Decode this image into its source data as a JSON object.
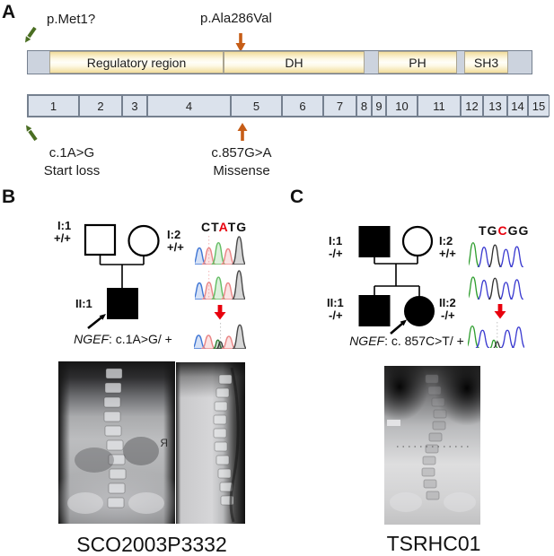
{
  "colors": {
    "green_arrow": "#4a6e22",
    "orange_arrow": "#c65d17",
    "red_arrow": "#e8000d",
    "domain_fill": "#fdf8e3",
    "linker_gray": "#ccd3de",
    "exon_fill": "#dbe2ec"
  },
  "panelA": {
    "label": "A",
    "annotation_start": "p.Met1?",
    "annotation_missense": "p.Ala286Val",
    "domains": [
      {
        "label": "Regulatory  region"
      },
      {
        "label": "DH"
      },
      {
        "label": "PH"
      },
      {
        "label": "SH3"
      }
    ],
    "exons": [
      "1",
      "2",
      "3",
      "4",
      "5",
      "6",
      "7",
      "8",
      "9",
      "10",
      "11",
      "12",
      "13",
      "14",
      "15"
    ],
    "mutation_left": {
      "code": "c.1A>G",
      "effect": "Start loss"
    },
    "mutation_right": {
      "code": "c.857G>A",
      "effect": "Missense"
    }
  },
  "panelB": {
    "label": "B",
    "pedigree": {
      "i1": {
        "id": "I:1",
        "genotype": "+/+"
      },
      "i2": {
        "id": "I:2",
        "genotype": "+/+"
      },
      "ii1": {
        "id": "II:1"
      }
    },
    "gene_annotation": {
      "gene": "NGEF",
      "rest": ": c.1A>G/ +"
    },
    "chromatogram": {
      "seq_pre": "CT",
      "seq_mut": "A",
      "seq_post": "TG",
      "style": "filled",
      "rows": [
        [
          {
            "x": 0.09,
            "h": 0.58,
            "c": "#4076d4"
          },
          {
            "x": 0.28,
            "h": 0.58,
            "c": "#e98585",
            "d": true
          },
          {
            "x": 0.47,
            "h": 0.76,
            "c": "#64bd64"
          },
          {
            "x": 0.66,
            "h": 0.55,
            "c": "#e98585"
          },
          {
            "x": 0.88,
            "h": 0.97,
            "c": "#4a4a4a"
          }
        ],
        [
          {
            "x": 0.09,
            "h": 0.58,
            "c": "#4076d4"
          },
          {
            "x": 0.28,
            "h": 0.6,
            "c": "#e98585",
            "d": true
          },
          {
            "x": 0.47,
            "h": 0.78,
            "c": "#64bd64"
          },
          {
            "x": 0.66,
            "h": 0.58,
            "c": "#e98585"
          },
          {
            "x": 0.88,
            "h": 1.0,
            "c": "#4a4a4a"
          }
        ],
        [
          {
            "x": 0.09,
            "h": 0.52,
            "c": "#4076d4"
          },
          {
            "x": 0.28,
            "h": 0.52,
            "c": "#e98585"
          },
          {
            "x": 0.46,
            "h": 0.34,
            "c": "#2e7d32",
            "w": 0.18
          },
          {
            "x": 0.51,
            "h": 0.27,
            "c": "#3a3a3a",
            "w": 0.16,
            "d": true,
            "dc": "#9a9a9a"
          },
          {
            "x": 0.67,
            "h": 0.48,
            "c": "#e98585"
          },
          {
            "x": 0.88,
            "h": 0.92,
            "c": "#4a4a4a"
          }
        ]
      ]
    },
    "xray_marker": "Я",
    "caption": "SCO2003P3332"
  },
  "panelC": {
    "label": "C",
    "pedigree": {
      "i1": {
        "id": "I:1",
        "genotype": "-/+"
      },
      "i2": {
        "id": "I:2",
        "genotype": "+/+"
      },
      "ii1": {
        "id": "II:1",
        "genotype": "-/+"
      },
      "ii2": {
        "id": "II:2",
        "genotype": "-/+"
      }
    },
    "gene_annotation": {
      "gene": "NGEF",
      "rest": ": c. 857C>T/ +"
    },
    "chromatogram": {
      "seq_pre": "TG",
      "seq_mut": "C",
      "seq_post": "GG",
      "style": "line",
      "rows": [
        [
          {
            "x": 0.08,
            "h": 0.88,
            "c": "#2f9e2f"
          },
          {
            "x": 0.28,
            "h": 0.72,
            "c": "#3b3bd0"
          },
          {
            "x": 0.48,
            "h": 0.8,
            "c": "#2f2f2f"
          },
          {
            "x": 0.68,
            "h": 0.64,
            "c": "#3b3bd0"
          },
          {
            "x": 0.88,
            "h": 0.74,
            "c": "#3b3bd0"
          }
        ],
        [
          {
            "x": 0.08,
            "h": 0.86,
            "c": "#2f9e2f"
          },
          {
            "x": 0.28,
            "h": 0.74,
            "c": "#3b3bd0"
          },
          {
            "x": 0.48,
            "h": 0.82,
            "c": "#2f2f2f"
          },
          {
            "x": 0.68,
            "h": 0.66,
            "c": "#3b3bd0"
          },
          {
            "x": 0.88,
            "h": 0.76,
            "c": "#3b3bd0"
          }
        ],
        [
          {
            "x": 0.08,
            "h": 0.84,
            "c": "#2f9e2f"
          },
          {
            "x": 0.26,
            "h": 0.68,
            "c": "#3b3bd0"
          },
          {
            "x": 0.46,
            "h": 0.3,
            "c": "#2f9e2f",
            "w": 0.14
          },
          {
            "x": 0.52,
            "h": 0.24,
            "c": "#2f2f2f",
            "w": 0.13,
            "d": true,
            "dc": "#9a9a9a"
          },
          {
            "x": 0.7,
            "h": 0.68,
            "c": "#3b3bd0"
          },
          {
            "x": 0.9,
            "h": 0.8,
            "c": "#3b3bd0"
          }
        ]
      ]
    },
    "caption": "TSRHC01"
  }
}
